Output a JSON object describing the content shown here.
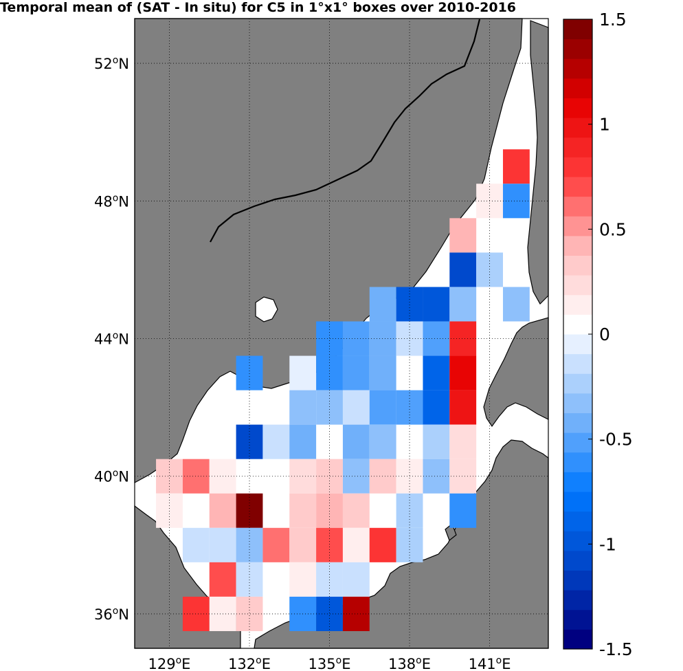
{
  "title": "Temporal mean of (SAT - In situ) for C5 in 1°x1° boxes over 2010-2016",
  "colors": {
    "land": "#808080",
    "sea": "#ffffff"
  },
  "map": {
    "lon_range": [
      127.7,
      143.2
    ],
    "lat_range": [
      35.0,
      53.3
    ],
    "lon_ticks": [
      {
        "value": 129,
        "label": "129",
        "unit": "oE"
      },
      {
        "value": 132,
        "label": "132",
        "unit": "oE"
      },
      {
        "value": 135,
        "label": "135",
        "unit": "oE"
      },
      {
        "value": 138,
        "label": "138",
        "unit": "oE"
      },
      {
        "value": 141,
        "label": "141",
        "unit": "oE"
      }
    ],
    "lat_ticks": [
      {
        "value": 52,
        "label": "52",
        "unit": "oN"
      },
      {
        "value": 48,
        "label": "48",
        "unit": "oN"
      },
      {
        "value": 44,
        "label": "44",
        "unit": "oN"
      },
      {
        "value": 40,
        "label": "40",
        "unit": "oN"
      },
      {
        "value": 36,
        "label": "36",
        "unit": "oN"
      }
    ]
  },
  "colorbar": {
    "range": [
      -1.5,
      1.5
    ],
    "levels": 32,
    "ticks": [
      {
        "value": 1.5,
        "label": "1.5"
      },
      {
        "value": 1,
        "label": "1"
      },
      {
        "value": 0.5,
        "label": "0.5"
      },
      {
        "value": 0,
        "label": "0"
      },
      {
        "value": -0.5,
        "label": "-0.5"
      },
      {
        "value": -1,
        "label": "-1"
      },
      {
        "value": -1.5,
        "label": "-1.5"
      }
    ]
  },
  "chart_data": {
    "type": "heatmap",
    "title": "Temporal mean of (SAT - In situ) for C5 in 1°x1° boxes over 2010-2016",
    "cell_size_deg": 1,
    "value_range": [
      -1.5,
      1.5
    ],
    "cells": [
      {
        "lat": [
          48.5,
          49.5
        ],
        "lon": [
          141.5,
          142.5
        ],
        "value": 0.75
      },
      {
        "lat": [
          47.5,
          48.5
        ],
        "lon": [
          140.5,
          141.5
        ],
        "value": 0.15
      },
      {
        "lat": [
          47.5,
          48.5
        ],
        "lon": [
          141.5,
          142.5
        ],
        "value": -0.6
      },
      {
        "lat": [
          46.5,
          47.5
        ],
        "lon": [
          139.5,
          140.5
        ],
        "value": 0.45
      },
      {
        "lat": [
          45.5,
          46.5
        ],
        "lon": [
          139.5,
          140.5
        ],
        "value": -1.1
      },
      {
        "lat": [
          45.5,
          46.5
        ],
        "lon": [
          140.5,
          141.5
        ],
        "value": -0.25
      },
      {
        "lat": [
          44.5,
          45.5
        ],
        "lon": [
          136.5,
          137.5
        ],
        "value": -0.4
      },
      {
        "lat": [
          44.5,
          45.5
        ],
        "lon": [
          137.5,
          138.5
        ],
        "value": -1.0
      },
      {
        "lat": [
          44.5,
          45.5
        ],
        "lon": [
          138.5,
          139.5
        ],
        "value": -1.0
      },
      {
        "lat": [
          44.5,
          45.5
        ],
        "lon": [
          139.5,
          140.5
        ],
        "value": -0.35
      },
      {
        "lat": [
          44.5,
          45.5
        ],
        "lon": [
          141.5,
          142.5
        ],
        "value": -0.3
      },
      {
        "lat": [
          43.5,
          44.5
        ],
        "lon": [
          134.5,
          135.5
        ],
        "value": -0.6
      },
      {
        "lat": [
          43.5,
          44.5
        ],
        "lon": [
          135.5,
          136.5
        ],
        "value": -0.55
      },
      {
        "lat": [
          43.5,
          44.5
        ],
        "lon": [
          136.5,
          137.5
        ],
        "value": -0.45
      },
      {
        "lat": [
          43.5,
          44.5
        ],
        "lon": [
          137.5,
          138.5
        ],
        "value": -0.15
      },
      {
        "lat": [
          43.5,
          44.5
        ],
        "lon": [
          138.5,
          139.5
        ],
        "value": -0.5
      },
      {
        "lat": [
          43.5,
          44.5
        ],
        "lon": [
          139.5,
          140.5
        ],
        "value": 0.85
      },
      {
        "lat": [
          42.5,
          43.5
        ],
        "lon": [
          131.5,
          132.5
        ],
        "value": -0.6
      },
      {
        "lat": [
          42.5,
          43.5
        ],
        "lon": [
          133.5,
          134.5
        ],
        "value": -0.05
      },
      {
        "lat": [
          42.5,
          43.5
        ],
        "lon": [
          134.5,
          135.5
        ],
        "value": -0.6
      },
      {
        "lat": [
          42.5,
          43.5
        ],
        "lon": [
          135.5,
          136.5
        ],
        "value": -0.5
      },
      {
        "lat": [
          42.5,
          43.5
        ],
        "lon": [
          136.5,
          137.5
        ],
        "value": -0.4
      },
      {
        "lat": [
          42.5,
          43.5
        ],
        "lon": [
          138.5,
          139.5
        ],
        "value": -0.85
      },
      {
        "lat": [
          42.5,
          43.5
        ],
        "lon": [
          139.5,
          140.5
        ],
        "value": 1.05
      },
      {
        "lat": [
          41.5,
          42.5
        ],
        "lon": [
          133.5,
          134.5
        ],
        "value": -0.3
      },
      {
        "lat": [
          41.5,
          42.5
        ],
        "lon": [
          134.5,
          135.5
        ],
        "value": -0.35
      },
      {
        "lat": [
          41.5,
          42.5
        ],
        "lon": [
          135.5,
          136.5
        ],
        "value": -0.15
      },
      {
        "lat": [
          41.5,
          42.5
        ],
        "lon": [
          136.5,
          137.5
        ],
        "value": -0.5
      },
      {
        "lat": [
          41.5,
          42.5
        ],
        "lon": [
          137.5,
          138.5
        ],
        "value": -0.5
      },
      {
        "lat": [
          41.5,
          42.5
        ],
        "lon": [
          138.5,
          139.5
        ],
        "value": -0.85
      },
      {
        "lat": [
          41.5,
          42.5
        ],
        "lon": [
          139.5,
          140.5
        ],
        "value": 0.95
      },
      {
        "lat": [
          40.5,
          41.5
        ],
        "lon": [
          131.5,
          132.5
        ],
        "value": -1.05
      },
      {
        "lat": [
          40.5,
          41.5
        ],
        "lon": [
          132.5,
          133.5
        ],
        "value": -0.15
      },
      {
        "lat": [
          40.5,
          41.5
        ],
        "lon": [
          133.5,
          134.5
        ],
        "value": -0.4
      },
      {
        "lat": [
          40.5,
          41.5
        ],
        "lon": [
          135.5,
          136.5
        ],
        "value": -0.4
      },
      {
        "lat": [
          40.5,
          41.5
        ],
        "lon": [
          136.5,
          137.5
        ],
        "value": -0.3
      },
      {
        "lat": [
          40.5,
          41.5
        ],
        "lon": [
          138.5,
          139.5
        ],
        "value": -0.25
      },
      {
        "lat": [
          40.5,
          41.5
        ],
        "lon": [
          139.5,
          140.5
        ],
        "value": 0.2
      },
      {
        "lat": [
          39.5,
          40.5
        ],
        "lon": [
          128.5,
          129.5
        ],
        "value": 0.3
      },
      {
        "lat": [
          39.5,
          40.5
        ],
        "lon": [
          129.5,
          130.5
        ],
        "value": 0.6
      },
      {
        "lat": [
          39.5,
          40.5
        ],
        "lon": [
          130.5,
          131.5
        ],
        "value": 0.15
      },
      {
        "lat": [
          39.5,
          40.5
        ],
        "lon": [
          133.5,
          134.5
        ],
        "value": 0.2
      },
      {
        "lat": [
          39.5,
          40.5
        ],
        "lon": [
          134.5,
          135.5
        ],
        "value": 0.3
      },
      {
        "lat": [
          39.5,
          40.5
        ],
        "lon": [
          135.5,
          136.5
        ],
        "value": -0.3
      },
      {
        "lat": [
          39.5,
          40.5
        ],
        "lon": [
          136.5,
          137.5
        ],
        "value": 0.3
      },
      {
        "lat": [
          39.5,
          40.5
        ],
        "lon": [
          137.5,
          138.5
        ],
        "value": 0.15
      },
      {
        "lat": [
          39.5,
          40.5
        ],
        "lon": [
          138.5,
          139.5
        ],
        "value": -0.3
      },
      {
        "lat": [
          39.5,
          40.5
        ],
        "lon": [
          139.5,
          140.5
        ],
        "value": 0.2
      },
      {
        "lat": [
          38.5,
          39.5
        ],
        "lon": [
          128.5,
          129.5
        ],
        "value": 0.15
      },
      {
        "lat": [
          38.5,
          39.5
        ],
        "lon": [
          130.5,
          131.5
        ],
        "value": 0.45
      },
      {
        "lat": [
          38.5,
          39.5
        ],
        "lon": [
          131.5,
          132.5
        ],
        "value": 1.45
      },
      {
        "lat": [
          38.5,
          39.5
        ],
        "lon": [
          133.5,
          134.5
        ],
        "value": 0.3
      },
      {
        "lat": [
          38.5,
          39.5
        ],
        "lon": [
          134.5,
          135.5
        ],
        "value": 0.45
      },
      {
        "lat": [
          38.5,
          39.5
        ],
        "lon": [
          135.5,
          136.5
        ],
        "value": 0.3
      },
      {
        "lat": [
          38.5,
          39.5
        ],
        "lon": [
          137.5,
          138.5
        ],
        "value": -0.25
      },
      {
        "lat": [
          38.5,
          39.5
        ],
        "lon": [
          139.5,
          140.5
        ],
        "value": -0.6
      },
      {
        "lat": [
          37.5,
          38.5
        ],
        "lon": [
          129.5,
          130.5
        ],
        "value": -0.15
      },
      {
        "lat": [
          37.5,
          38.5
        ],
        "lon": [
          130.5,
          131.5
        ],
        "value": -0.15
      },
      {
        "lat": [
          37.5,
          38.5
        ],
        "lon": [
          131.5,
          132.5
        ],
        "value": -0.3
      },
      {
        "lat": [
          37.5,
          38.5
        ],
        "lon": [
          132.5,
          133.5
        ],
        "value": 0.6
      },
      {
        "lat": [
          37.5,
          38.5
        ],
        "lon": [
          133.5,
          134.5
        ],
        "value": 0.3
      },
      {
        "lat": [
          37.5,
          38.5
        ],
        "lon": [
          134.5,
          135.5
        ],
        "value": 0.7
      },
      {
        "lat": [
          37.5,
          38.5
        ],
        "lon": [
          135.5,
          136.5
        ],
        "value": 0.15
      },
      {
        "lat": [
          37.5,
          38.5
        ],
        "lon": [
          136.5,
          137.5
        ],
        "value": 0.8
      },
      {
        "lat": [
          37.5,
          38.5
        ],
        "lon": [
          137.5,
          138.5
        ],
        "value": -0.2
      },
      {
        "lat": [
          36.5,
          37.5
        ],
        "lon": [
          130.5,
          131.5
        ],
        "value": 0.7
      },
      {
        "lat": [
          36.5,
          37.5
        ],
        "lon": [
          131.5,
          132.5
        ],
        "value": -0.15
      },
      {
        "lat": [
          36.5,
          37.5
        ],
        "lon": [
          133.5,
          134.5
        ],
        "value": 0.15
      },
      {
        "lat": [
          36.5,
          37.5
        ],
        "lon": [
          134.5,
          135.5
        ],
        "value": -0.15
      },
      {
        "lat": [
          36.5,
          37.5
        ],
        "lon": [
          135.5,
          136.5
        ],
        "value": -0.15
      },
      {
        "lat": [
          35.5,
          36.5
        ],
        "lon": [
          129.5,
          130.5
        ],
        "value": 0.8
      },
      {
        "lat": [
          35.5,
          36.5
        ],
        "lon": [
          130.5,
          131.5
        ],
        "value": 0.15
      },
      {
        "lat": [
          35.5,
          36.5
        ],
        "lon": [
          131.5,
          132.5
        ],
        "value": 0.35
      },
      {
        "lat": [
          35.5,
          36.5
        ],
        "lon": [
          133.5,
          134.5
        ],
        "value": -0.6
      },
      {
        "lat": [
          35.5,
          36.5
        ],
        "lon": [
          134.5,
          135.5
        ],
        "value": -1.0
      },
      {
        "lat": [
          35.5,
          36.5
        ],
        "lon": [
          135.5,
          136.5
        ],
        "value": 1.25
      }
    ]
  }
}
